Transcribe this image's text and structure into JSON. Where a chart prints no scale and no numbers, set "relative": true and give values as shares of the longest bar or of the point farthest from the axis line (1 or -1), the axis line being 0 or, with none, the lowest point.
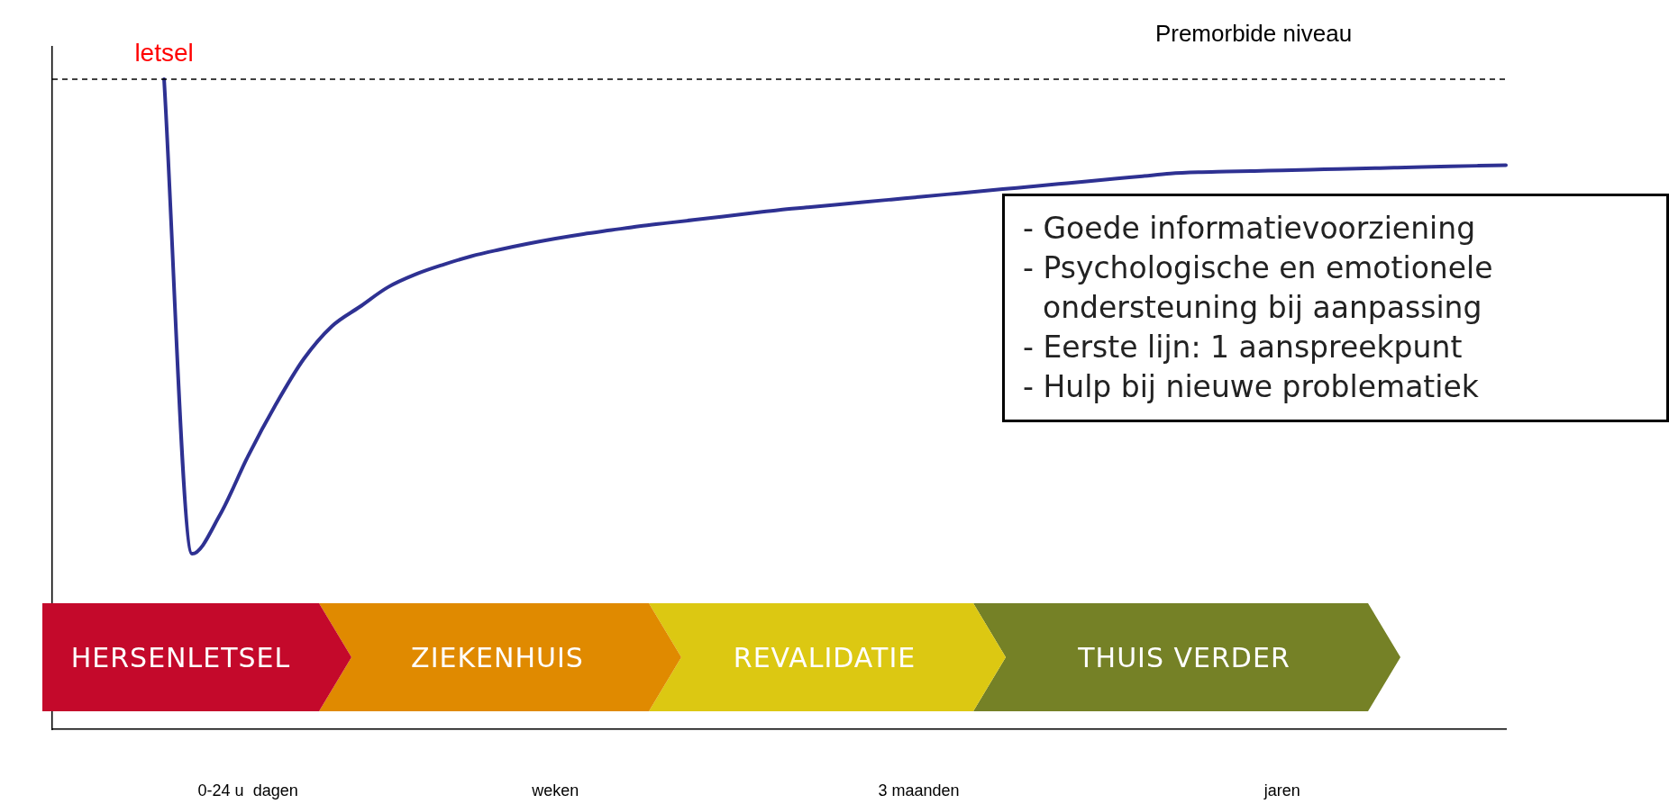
{
  "chart_data": {
    "type": "line",
    "relative": true,
    "tick_labels": "x",
    "grid": false,
    "legend": false,
    "marker": "none",
    "line_style": "solid",
    "categories": [
      null,
      null,
      null,
      null,
      null,
      null,
      null,
      "0-24 u  dagen",
      null,
      null,
      null,
      null,
      null,
      null,
      null,
      null,
      null,
      null,
      "weken",
      null,
      null,
      null,
      null,
      null,
      null,
      null,
      null,
      null,
      null,
      null,
      null,
      "3 maanden",
      null,
      null,
      null,
      null,
      null,
      null,
      null,
      null,
      null,
      null,
      null,
      null,
      "jaren",
      null,
      null,
      null,
      null,
      null,
      null,
      null,
      null
    ],
    "series": [
      {
        "color": "#2e3192",
        "values": [
          null,
          null,
          null,
          null,
          1,
          0.27,
          0.33,
          0.42,
          0.5,
          0.57,
          0.62,
          0.65,
          0.68,
          0.7,
          0.715,
          0.728,
          0.738,
          0.747,
          0.755,
          0.762,
          0.768,
          0.774,
          0.779,
          0.784,
          0.789,
          0.794,
          0.799,
          0.803,
          0.807,
          0.811,
          0.815,
          0.819,
          0.823,
          0.827,
          0.831,
          0.835,
          0.839,
          0.843,
          0.847,
          0.851,
          0.855,
          0.857,
          0.858,
          0.859,
          0.86,
          0.861,
          0.862,
          0.863,
          0.864,
          0.865,
          0.866,
          0.867,
          0.868
        ]
      }
    ],
    "ref_lines": [
      {
        "axis": "y",
        "value": 1,
        "label": "Premorbide niveau",
        "line_style": "dashed",
        "color": "#000000"
      }
    ],
    "annotations": [
      "letsel",
      "HERSENLETSEL",
      "ZIEKENHUIS",
      "REVALIDATIE",
      "THUIS VERDER",
      "- Goede informatievoorziening",
      "- Psychologische en emotionele ondersteuning bij aanpassing",
      "- Eerste lijn: 1 aanspreekpunt",
      "- Hulp bij nieuwe problematiek"
    ]
  }
}
